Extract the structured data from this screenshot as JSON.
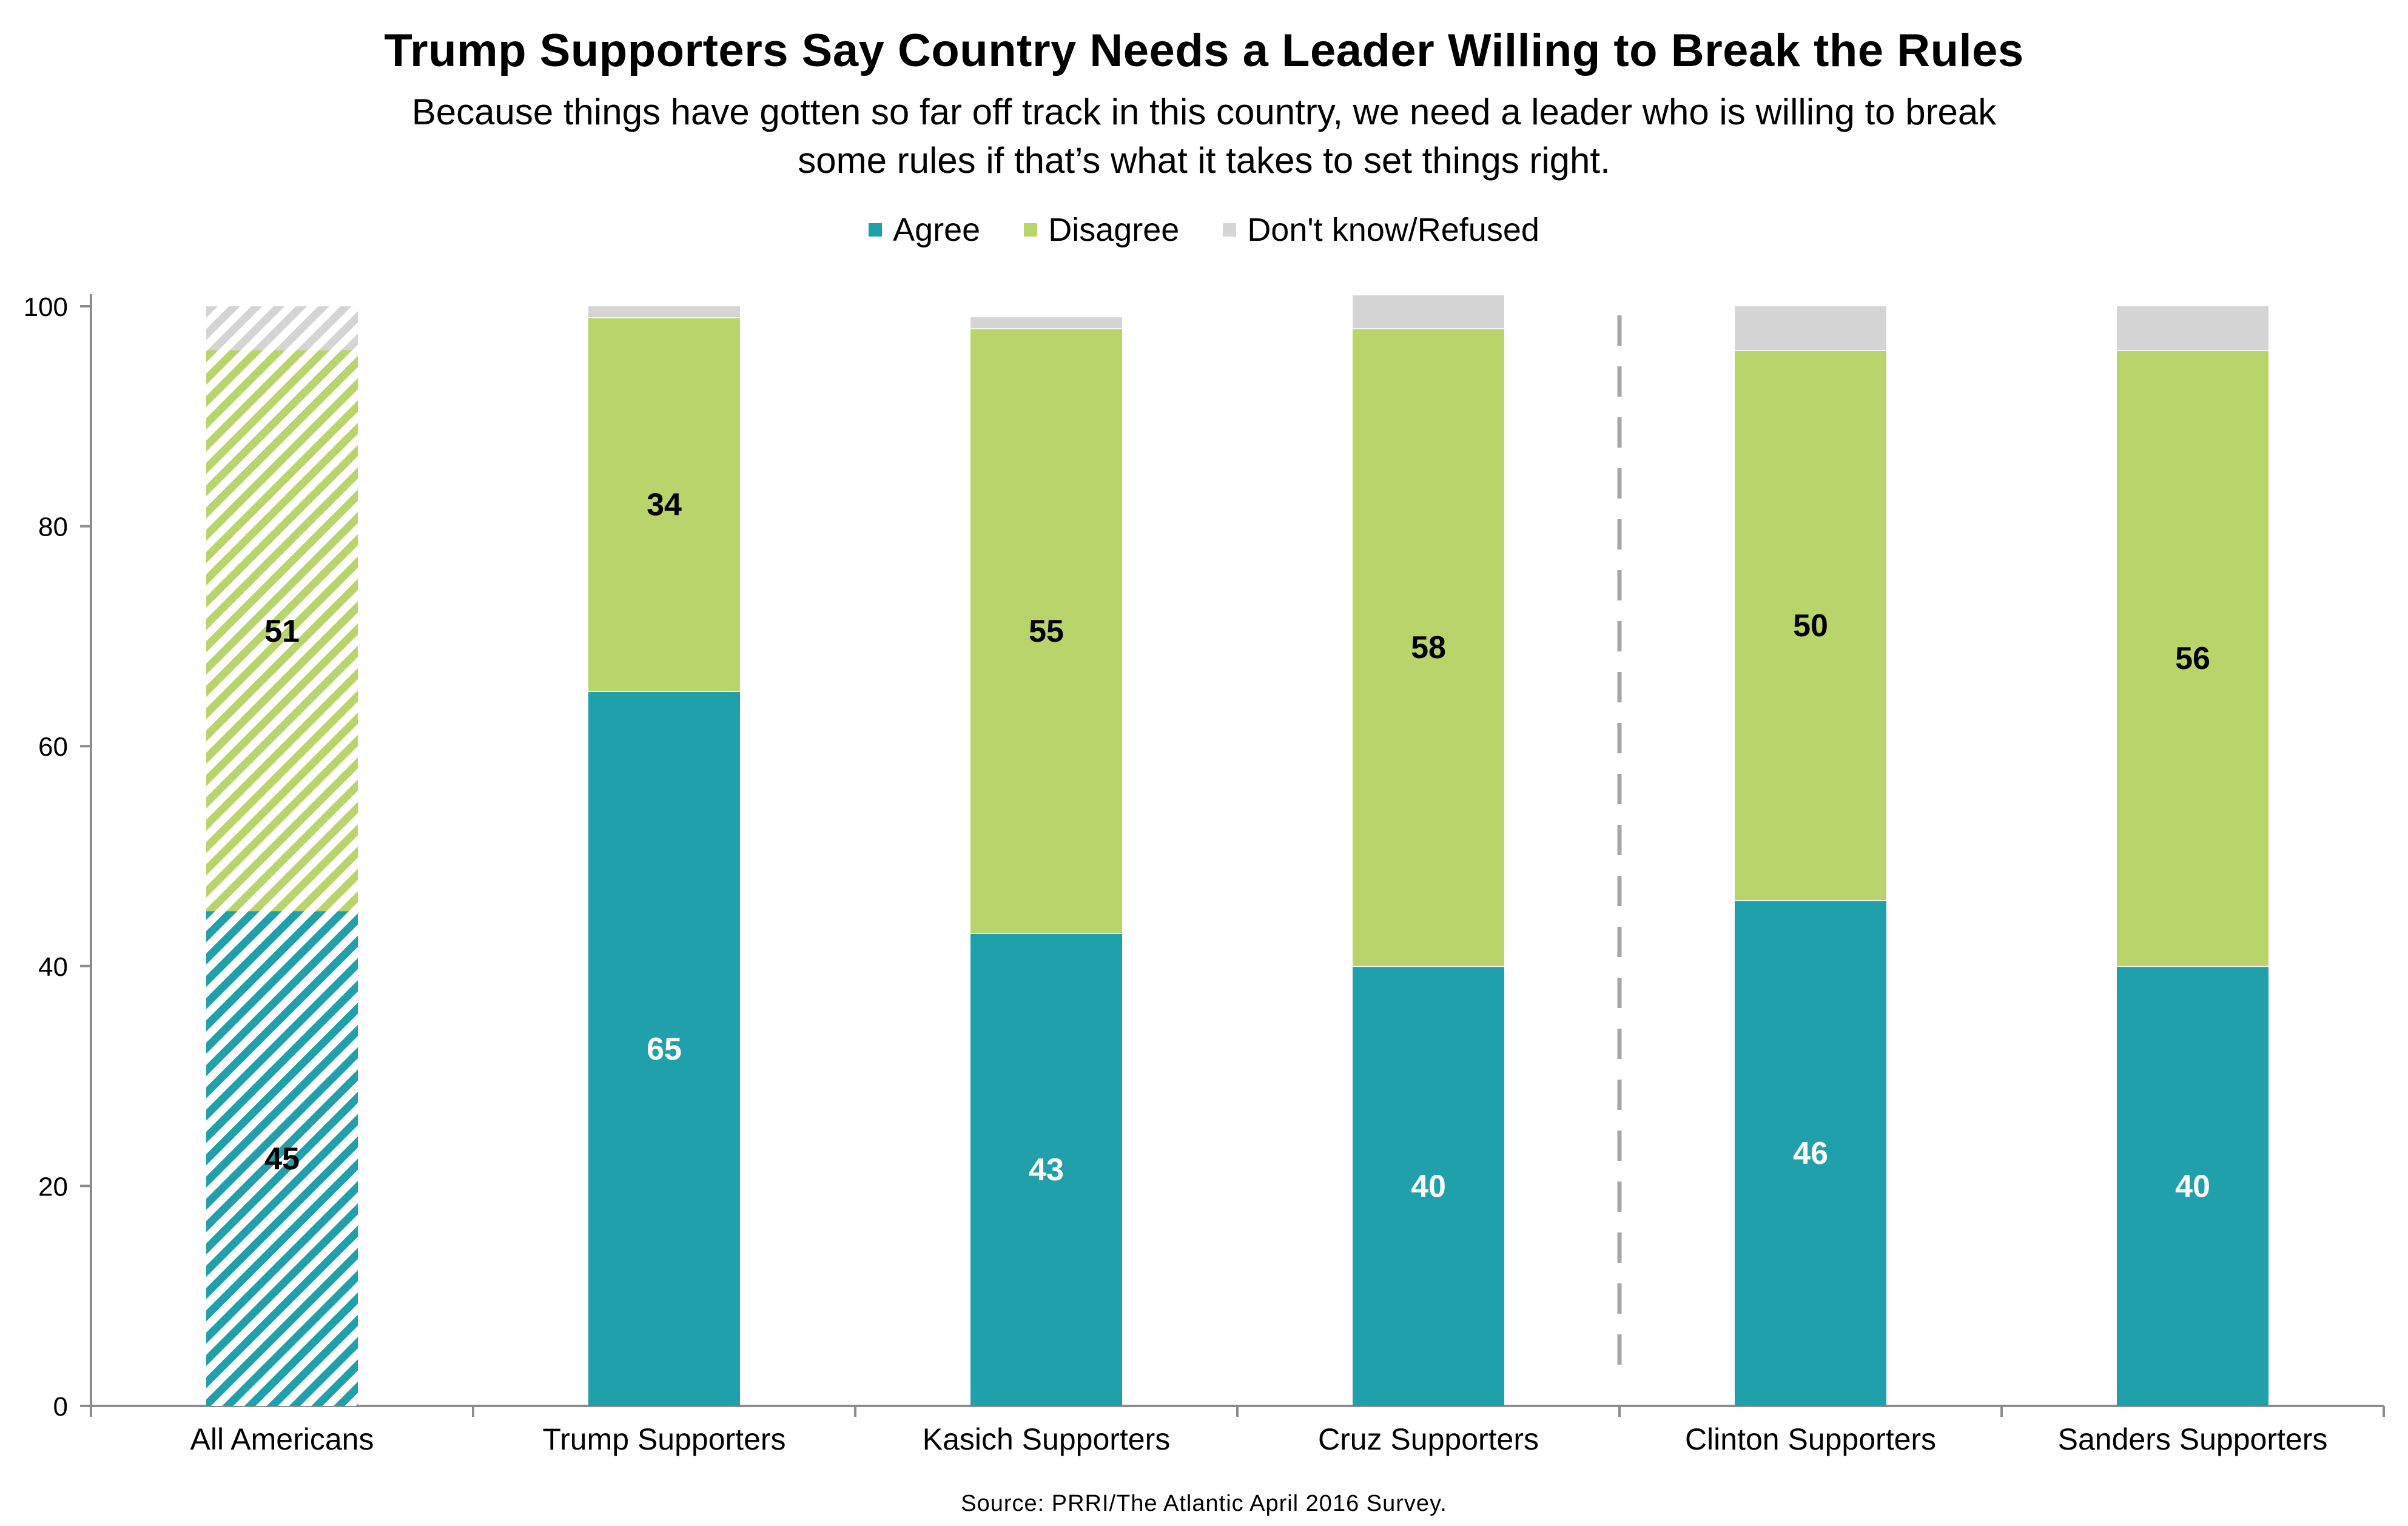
{
  "title": "Trump Supporters Say Country Needs a Leader Willing to Break the Rules",
  "subtitle_line1": "Because things have gotten so far off track in this country, we need a leader who is willing to break",
  "subtitle_line2": "some rules if that’s what it takes to set things right.",
  "source": "Source: PRRI/The Atlantic April 2016 Survey.",
  "legend": [
    {
      "label": "Agree",
      "color": "#1fa0aa"
    },
    {
      "label": "Disagree",
      "color": "#b9d46a"
    },
    {
      "label": "Don't know/Refused",
      "color": "#d4d4d4"
    }
  ],
  "chart_data": {
    "type": "bar",
    "stacked": true,
    "categories": [
      "All Americans",
      "Trump Supporters",
      "Kasich Supporters",
      "Cruz Supporters",
      "Clinton Supporters",
      "Sanders Supporters"
    ],
    "series": [
      {
        "name": "Agree",
        "color": "#1fa0aa",
        "values": [
          45,
          65,
          43,
          40,
          46,
          40
        ],
        "show_labels": true
      },
      {
        "name": "Disagree",
        "color": "#b9d46a",
        "values": [
          51,
          34,
          55,
          58,
          50,
          56
        ],
        "show_labels": true
      },
      {
        "name": "Don't know/Refused",
        "color": "#d4d4d4",
        "values": [
          4,
          1,
          1,
          3,
          4,
          4
        ],
        "show_labels": false
      }
    ],
    "hatched_categories": [
      "All Americans"
    ],
    "divider_after_index": 3,
    "ylim": [
      0,
      100
    ],
    "yticks": [
      0,
      20,
      40,
      60,
      80,
      100
    ],
    "legend_position": "top-center",
    "grid": false
  }
}
